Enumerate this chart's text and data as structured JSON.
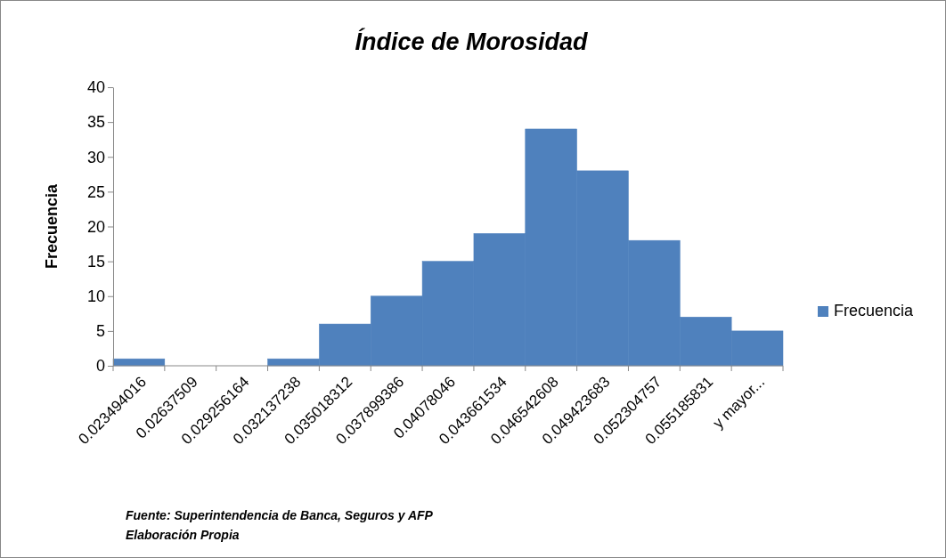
{
  "chart_data": {
    "type": "bar",
    "title": "Índice de Morosidad",
    "ylabel": "Frecuencia",
    "categories": [
      "0.023494016",
      "0.02637509",
      "0.029256164",
      "0.032137238",
      "0.035018312",
      "0.037899386",
      "0.04078046",
      "0.043661534",
      "0.046542608",
      "0.049423683",
      "0.052304757",
      "0.055185831",
      "y mayor..."
    ],
    "series": [
      {
        "name": "Frecuencia",
        "color": "#4f81bd",
        "values": [
          1,
          0,
          0,
          1,
          6,
          10,
          15,
          19,
          34,
          28,
          18,
          7,
          5
        ]
      }
    ],
    "ylim": [
      0,
      40
    ],
    "yticks": [
      0,
      5,
      10,
      15,
      20,
      25,
      30,
      35,
      40
    ],
    "grid": false,
    "legend": "right",
    "annotations": [
      "Fuente: Superintendencia de Banca, Seguros y AFP",
      "Elaboración Propia"
    ]
  }
}
